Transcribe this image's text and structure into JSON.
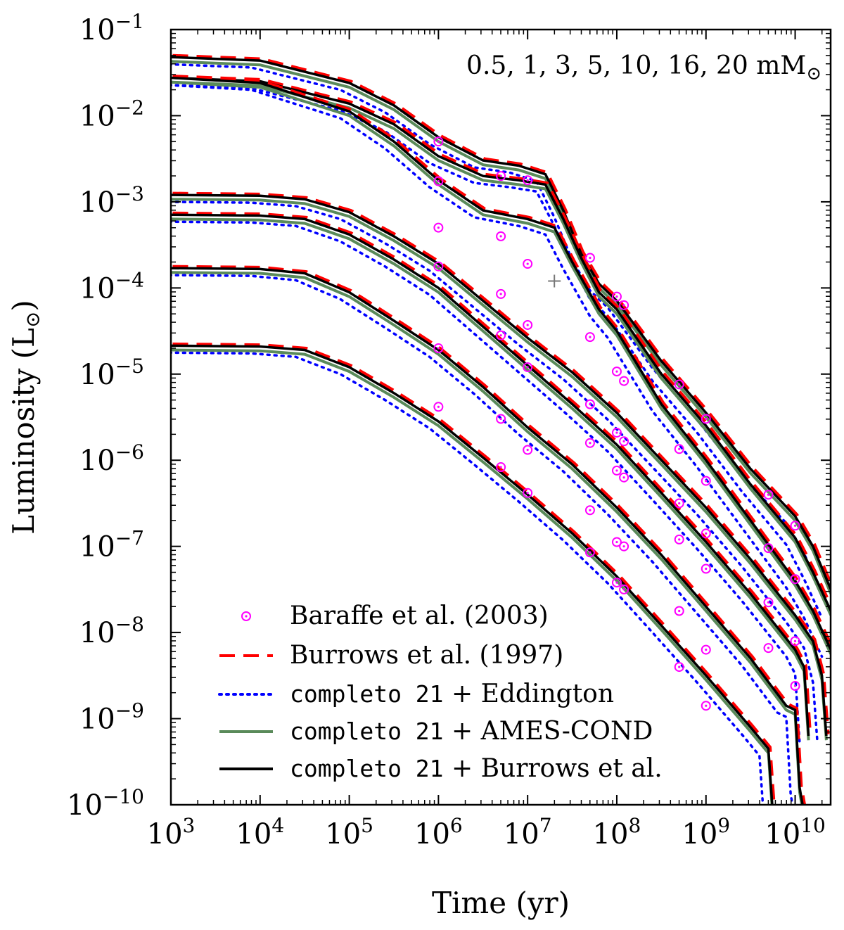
{
  "chart_data": {
    "type": "line",
    "log_x": true,
    "log_y": true,
    "xlabel": "Time (yr)",
    "ylabel_text": "Luminosity (L",
    "ylabel_sun": "⊙",
    "ylabel_close": ")",
    "annotation": "0.5, 1, 3, 5, 10, 16, 20 mM",
    "annotation_sun": "⊙",
    "xlim": [
      1000,
      25000000000
    ],
    "ylim": [
      1e-10,
      0.1
    ],
    "x_ticks": [
      {
        "base": "10",
        "exp": "3",
        "value": 1000
      },
      {
        "base": "10",
        "exp": "4",
        "value": 10000
      },
      {
        "base": "10",
        "exp": "5",
        "value": 100000
      },
      {
        "base": "10",
        "exp": "6",
        "value": 1000000
      },
      {
        "base": "10",
        "exp": "7",
        "value": 10000000
      },
      {
        "base": "10",
        "exp": "8",
        "value": 100000000
      },
      {
        "base": "10",
        "exp": "9",
        "value": 1000000000
      },
      {
        "base": "10",
        "exp": "10",
        "value": 10000000000
      }
    ],
    "y_ticks": [
      {
        "base": "10",
        "exp": "−1",
        "value": 0.1
      },
      {
        "base": "10",
        "exp": "−2",
        "value": 0.01
      },
      {
        "base": "10",
        "exp": "−3",
        "value": 0.001
      },
      {
        "base": "10",
        "exp": "−4",
        "value": 0.0001
      },
      {
        "base": "10",
        "exp": "−5",
        "value": 1e-05
      },
      {
        "base": "10",
        "exp": "−6",
        "value": 1e-06
      },
      {
        "base": "10",
        "exp": "−7",
        "value": 1e-07
      },
      {
        "base": "10",
        "exp": "−8",
        "value": 1e-08
      },
      {
        "base": "10",
        "exp": "−9",
        "value": 1e-09
      },
      {
        "base": "10",
        "exp": "−10",
        "value": 1e-10
      }
    ],
    "legend": [
      {
        "key": "baraffe",
        "label": "Baraffe et al. (2003)",
        "mono": "",
        "color": "#ff00ff",
        "style": "circle-dot"
      },
      {
        "key": "burrows97",
        "label": "Burrows et al. (1997)",
        "mono": "",
        "color": "#ff0000",
        "style": "dashed"
      },
      {
        "key": "eddington",
        "label": " + Eddington",
        "mono": "completo 21",
        "color": "#0000ff",
        "style": "dotted"
      },
      {
        "key": "amescond",
        "label": " + AMES-COND",
        "mono": "completo 21",
        "color": "#5a8a5a",
        "style": "solid"
      },
      {
        "key": "burrows_atm",
        "label": " + Burrows et al.",
        "mono": "completo 21",
        "color": "#000000",
        "style": "solid"
      }
    ],
    "masses_mMsun": [
      0.5,
      1,
      3,
      5,
      10,
      16,
      20
    ],
    "tracks": [
      {
        "mass": 20,
        "log_points": [
          [
            3,
            -1.32
          ],
          [
            4,
            -1.36
          ],
          [
            5,
            -1.62
          ],
          [
            5.5,
            -1.88
          ],
          [
            6,
            -2.25
          ],
          [
            6.5,
            -2.52
          ],
          [
            6.9,
            -2.58
          ],
          [
            7.2,
            -2.68
          ],
          [
            7.4,
            -3.1
          ],
          [
            7.6,
            -3.6
          ],
          [
            7.8,
            -3.95
          ],
          [
            8,
            -4.15
          ],
          [
            8.5,
            -4.85
          ],
          [
            9,
            -5.45
          ],
          [
            9.5,
            -6.1
          ],
          [
            10,
            -6.65
          ],
          [
            10.2,
            -7.0
          ],
          [
            10.4,
            -7.5
          ]
        ]
      },
      {
        "mass": 16,
        "log_points": [
          [
            3,
            -1.56
          ],
          [
            4,
            -1.6
          ],
          [
            5,
            -1.86
          ],
          [
            5.5,
            -2.1
          ],
          [
            6,
            -2.47
          ],
          [
            6.5,
            -2.7
          ],
          [
            6.9,
            -2.75
          ],
          [
            7.2,
            -2.8
          ],
          [
            7.4,
            -3.2
          ],
          [
            7.6,
            -3.65
          ],
          [
            7.8,
            -4.05
          ],
          [
            8,
            -4.25
          ],
          [
            8.5,
            -5.0
          ],
          [
            9,
            -5.6
          ],
          [
            9.5,
            -6.28
          ],
          [
            10,
            -6.9
          ],
          [
            10.2,
            -7.3
          ],
          [
            10.4,
            -7.75
          ]
        ]
      },
      {
        "mass": 10,
        "log_points": [
          [
            3,
            -1.56
          ],
          [
            4,
            -1.62
          ],
          [
            5,
            -1.95
          ],
          [
            5.5,
            -2.3
          ],
          [
            6,
            -2.75
          ],
          [
            6.5,
            -3.1
          ],
          [
            7,
            -3.2
          ],
          [
            7.3,
            -3.3
          ],
          [
            7.5,
            -3.7
          ],
          [
            7.8,
            -4.25
          ],
          [
            8,
            -4.5
          ],
          [
            8.5,
            -5.35
          ],
          [
            9,
            -6.0
          ],
          [
            9.5,
            -6.7
          ],
          [
            10,
            -7.4
          ],
          [
            10.2,
            -7.75
          ],
          [
            10.4,
            -8.2
          ]
        ]
      },
      {
        "mass": 5,
        "log_points": [
          [
            3,
            -2.92
          ],
          [
            4,
            -2.93
          ],
          [
            4.5,
            -2.97
          ],
          [
            5,
            -3.12
          ],
          [
            5.5,
            -3.4
          ],
          [
            6,
            -3.72
          ],
          [
            6.5,
            -4.15
          ],
          [
            7,
            -4.58
          ],
          [
            7.5,
            -4.98
          ],
          [
            8,
            -5.45
          ],
          [
            8.5,
            -6.0
          ],
          [
            9,
            -6.55
          ],
          [
            9.5,
            -7.15
          ],
          [
            10,
            -7.8
          ],
          [
            10.2,
            -8.1
          ],
          [
            10.3,
            -8.5
          ],
          [
            10.35,
            -9.2
          ]
        ]
      },
      {
        "mass": 3,
        "log_points": [
          [
            3,
            -3.15
          ],
          [
            4,
            -3.16
          ],
          [
            4.5,
            -3.2
          ],
          [
            5,
            -3.38
          ],
          [
            5.5,
            -3.67
          ],
          [
            6,
            -4.0
          ],
          [
            6.5,
            -4.45
          ],
          [
            7,
            -4.9
          ],
          [
            7.5,
            -5.35
          ],
          [
            8,
            -5.82
          ],
          [
            8.5,
            -6.38
          ],
          [
            9,
            -6.95
          ],
          [
            9.5,
            -7.55
          ],
          [
            10,
            -8.2
          ],
          [
            10.1,
            -8.4
          ],
          [
            10.15,
            -9.2
          ]
        ]
      },
      {
        "mass": 1,
        "log_points": [
          [
            3,
            -3.77
          ],
          [
            4,
            -3.78
          ],
          [
            4.5,
            -3.83
          ],
          [
            5,
            -4.05
          ],
          [
            5.5,
            -4.38
          ],
          [
            6,
            -4.72
          ],
          [
            6.5,
            -5.15
          ],
          [
            7,
            -5.62
          ],
          [
            7.5,
            -6.05
          ],
          [
            8,
            -6.55
          ],
          [
            8.5,
            -7.1
          ],
          [
            9,
            -7.7
          ],
          [
            9.5,
            -8.3
          ],
          [
            9.9,
            -8.85
          ],
          [
            10,
            -8.9
          ],
          [
            10.05,
            -9.8
          ],
          [
            10.1,
            -10.1
          ]
        ]
      },
      {
        "mass": 0.5,
        "log_points": [
          [
            3,
            -4.67
          ],
          [
            4,
            -4.68
          ],
          [
            4.5,
            -4.72
          ],
          [
            5,
            -4.92
          ],
          [
            5.5,
            -5.22
          ],
          [
            6,
            -5.55
          ],
          [
            6.5,
            -5.97
          ],
          [
            7,
            -6.4
          ],
          [
            7.5,
            -6.85
          ],
          [
            8,
            -7.35
          ],
          [
            8.5,
            -7.92
          ],
          [
            9,
            -8.5
          ],
          [
            9.5,
            -9.1
          ],
          [
            9.7,
            -9.35
          ],
          [
            9.75,
            -10.1
          ]
        ]
      }
    ],
    "baraffe_points": [
      [
        6.0,
        -2.3
      ],
      [
        6.0,
        -2.76
      ],
      [
        6.0,
        -3.3
      ],
      [
        6.0,
        -3.75
      ],
      [
        6.0,
        -4.7
      ],
      [
        6.0,
        -5.38
      ],
      [
        6.7,
        -2.7
      ],
      [
        6.7,
        -3.4
      ],
      [
        6.7,
        -4.07
      ],
      [
        6.7,
        -4.55
      ],
      [
        6.7,
        -5.52
      ],
      [
        6.7,
        -6.08
      ],
      [
        7.0,
        -2.75
      ],
      [
        7.0,
        -3.72
      ],
      [
        7.0,
        -4.43
      ],
      [
        7.0,
        -4.92
      ],
      [
        7.0,
        -5.88
      ],
      [
        7.0,
        -6.38
      ],
      [
        7.7,
        -3.65
      ],
      [
        7.7,
        -4.57
      ],
      [
        7.7,
        -5.35
      ],
      [
        7.7,
        -5.8
      ],
      [
        7.7,
        -6.58
      ],
      [
        7.7,
        -7.07
      ],
      [
        8.0,
        -4.1
      ],
      [
        8.0,
        -4.97
      ],
      [
        8.0,
        -5.68
      ],
      [
        8.0,
        -6.12
      ],
      [
        8.0,
        -6.95
      ],
      [
        8.0,
        -7.42
      ],
      [
        8.08,
        -4.2
      ],
      [
        8.08,
        -5.08
      ],
      [
        8.08,
        -5.78
      ],
      [
        8.08,
        -6.2
      ],
      [
        8.08,
        -7.0
      ],
      [
        8.08,
        -7.5
      ],
      [
        8.7,
        -5.12
      ],
      [
        8.7,
        -5.87
      ],
      [
        8.7,
        -6.5
      ],
      [
        8.7,
        -6.92
      ],
      [
        8.7,
        -7.75
      ],
      [
        8.7,
        -8.4
      ],
      [
        9.0,
        -5.52
      ],
      [
        9.0,
        -6.24
      ],
      [
        9.0,
        -6.85
      ],
      [
        9.0,
        -7.26
      ],
      [
        9.0,
        -8.2
      ],
      [
        9.0,
        -8.85
      ],
      [
        9.7,
        -6.4
      ],
      [
        9.7,
        -7.02
      ],
      [
        9.7,
        -7.65
      ],
      [
        9.7,
        -8.18
      ],
      [
        10.0,
        -6.76
      ],
      [
        10.0,
        -7.38
      ],
      [
        10.0,
        -8.1
      ],
      [
        10.0,
        -8.62
      ]
    ],
    "marker_plus": [
      7.3,
      -3.92
    ]
  }
}
